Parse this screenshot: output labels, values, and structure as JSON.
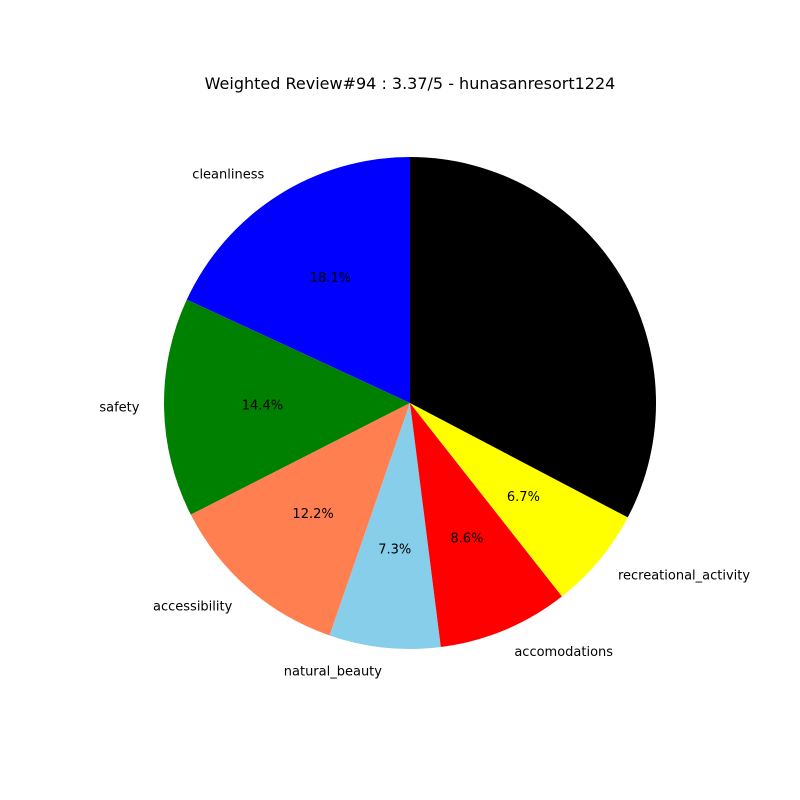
{
  "chart_data": {
    "type": "pie",
    "title": "Weighted Review#94 : 3.37/5 - hunasanresort1224",
    "start_angle_deg": 90,
    "direction": "counterclockwise",
    "slices": [
      {
        "label": "cleanliness",
        "value": 18.1,
        "pct_label": "18.1%",
        "color": "#0000ff"
      },
      {
        "label": "safety",
        "value": 14.4,
        "pct_label": "14.4%",
        "color": "#008000"
      },
      {
        "label": "accessibility",
        "value": 12.2,
        "pct_label": "12.2%",
        "color": "#ff7f50"
      },
      {
        "label": "natural_beauty",
        "value": 7.3,
        "pct_label": "7.3%",
        "color": "#87ceeb"
      },
      {
        "label": "accomodations",
        "value": 8.6,
        "pct_label": "8.6%",
        "color": "#ff0000"
      },
      {
        "label": "recreational_activity",
        "value": 6.7,
        "pct_label": "6.7%",
        "color": "#ffff00"
      },
      {
        "label": "",
        "value": 32.7,
        "pct_label": "",
        "color": "#000000"
      }
    ]
  }
}
